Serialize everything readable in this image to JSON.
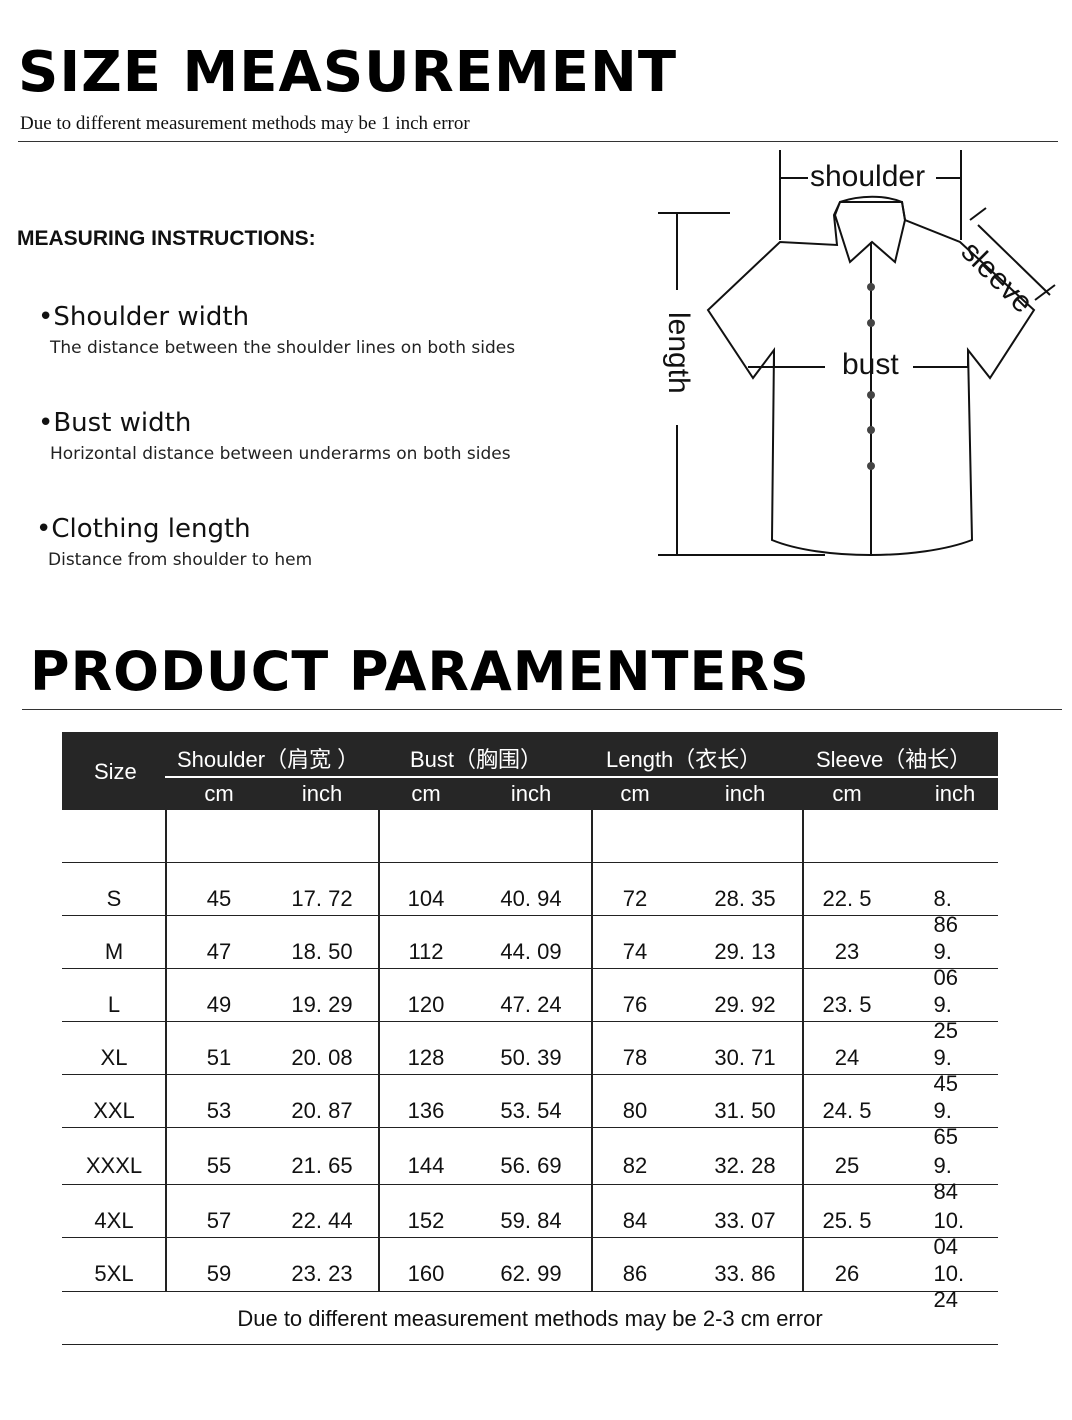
{
  "header": {
    "title": "SIZE  MEASUREMENT",
    "subtitle": "Due to different measurement methods may be 1 inch error"
  },
  "instructions": {
    "title": "MEASURING INSTRUCTIONS:",
    "items": [
      {
        "title": "•Shoulder width",
        "desc": "The distance between the shoulder lines on both sides"
      },
      {
        "title": "•Bust width",
        "desc": "Horizontal distance between underarms on both sides"
      },
      {
        "title": "•Clothing length",
        "desc": "Distance from shoulder to hem"
      }
    ]
  },
  "diagram": {
    "shoulder": "shoulder",
    "sleeve": "sleeve",
    "length": "length",
    "bust": "bust"
  },
  "params_title": "PRODUCT PARAMENTERS",
  "table": {
    "size_header": "Size",
    "groups": [
      "Shoulder（肩宽 ）",
      "Bust（胸围）",
      "Length（衣长）",
      "Sleeve（袖长）"
    ],
    "units": [
      "cm",
      "inch",
      "cm",
      "inch",
      "cm",
      "inch",
      "cm",
      "inch"
    ],
    "rows": [
      [
        "S",
        "45",
        "17. 72",
        "104",
        "40. 94",
        "72",
        "28. 35",
        "22. 5",
        "8. 86"
      ],
      [
        "M",
        "47",
        "18. 50",
        "112",
        "44. 09",
        "74",
        "29. 13",
        "23",
        "9. 06"
      ],
      [
        "L",
        "49",
        "19. 29",
        "120",
        "47. 24",
        "76",
        "29. 92",
        "23. 5",
        "9. 25"
      ],
      [
        "XL",
        "51",
        "20. 08",
        "128",
        "50. 39",
        "78",
        "30. 71",
        "24",
        "9. 45"
      ],
      [
        "XXL",
        "53",
        "20. 87",
        "136",
        "53. 54",
        "80",
        "31. 50",
        "24. 5",
        "9. 65"
      ],
      [
        "XXXL",
        "55",
        "21. 65",
        "144",
        "56. 69",
        "82",
        "32. 28",
        "25",
        "9. 84"
      ],
      [
        "4XL",
        "57",
        "22. 44",
        "152",
        "59. 84",
        "84",
        "33. 07",
        "25. 5",
        "10. 04"
      ],
      [
        "5XL",
        "59",
        "23. 23",
        "160",
        "62. 99",
        "86",
        "33. 86",
        "26",
        "10. 24"
      ]
    ],
    "footer": "Due to different measurement methods may be 2-3 cm error"
  }
}
